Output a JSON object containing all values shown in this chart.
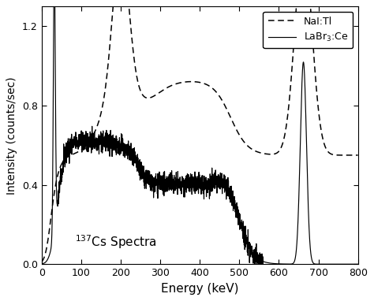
{
  "title": "",
  "xlabel": "Energy (keV)",
  "ylabel": "Intensity (counts/sec)",
  "annotation": "$^{137}$Cs Spectra",
  "xlim": [
    0,
    800
  ],
  "ylim": [
    0,
    1.3
  ],
  "yticks": [
    0.0,
    0.4,
    0.8,
    1.2
  ],
  "xticks": [
    0,
    100,
    200,
    300,
    400,
    500,
    600,
    700,
    800
  ],
  "legend_entries": [
    "NaI:Tl",
    "LaBr$_3$:Ce"
  ],
  "background_color": "#ffffff",
  "line_color": "#000000"
}
